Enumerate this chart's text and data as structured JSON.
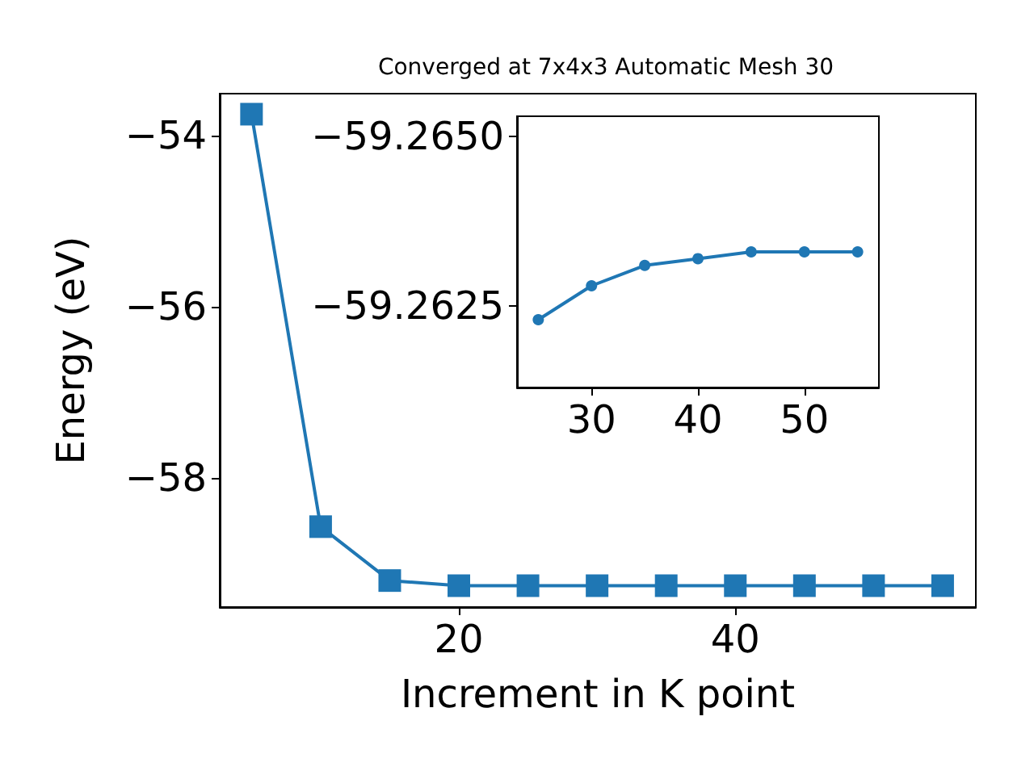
{
  "chart_data": [
    {
      "type": "line",
      "title": "Converged at 7x4x3 Automatic Mesh 30",
      "xlabel": "Increment in K point",
      "ylabel": "Energy (eV)",
      "x": [
        5,
        10,
        15,
        20,
        25,
        30,
        35,
        40,
        45,
        50,
        55
      ],
      "series": [
        {
          "color": "#1f77b4",
          "values": [
            -53.75,
            -58.57,
            -59.2,
            -59.26,
            -59.26,
            -59.26,
            -59.26,
            -59.26,
            -59.26,
            -59.26,
            -59.26
          ]
        }
      ],
      "xlim": [
        2.7,
        57.4
      ],
      "xticks": [
        20,
        40
      ],
      "ylim": [
        -59.51,
        -53.51
      ],
      "yticks": [
        -58,
        -56,
        -54
      ],
      "marker": "square",
      "grid": false
    },
    {
      "type": "line",
      "x": [
        25,
        30,
        35,
        40,
        45,
        50,
        55
      ],
      "series": [
        {
          "color": "#1f77b4",
          "values": [
            -59.2623,
            -59.2628,
            -59.2631,
            -59.2632,
            -59.2633,
            -59.2633,
            -59.2633
          ]
        }
      ],
      "xlim": [
        23,
        57
      ],
      "xticks": [
        30,
        40,
        50
      ],
      "ylim": [
        -59.2613,
        -59.2653
      ],
      "yticks": [
        {
          "value": -59.265,
          "label": "−59.2650"
        },
        {
          "value": -59.2625,
          "label": "−59.2625"
        }
      ],
      "marker": "circle",
      "grid": false
    }
  ]
}
